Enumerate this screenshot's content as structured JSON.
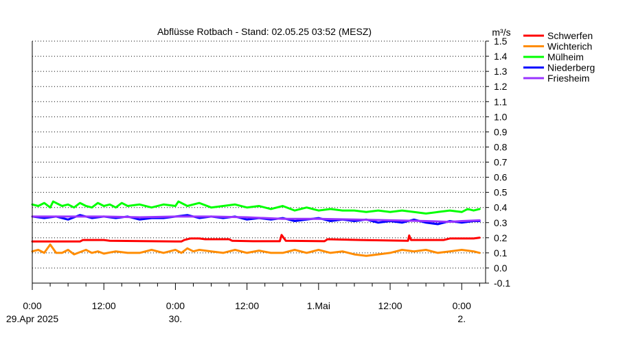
{
  "chart_data": {
    "type": "line",
    "title": "Abflüsse Rotbach - Stand: 02.05.25 03:52 (MESZ)",
    "ylabel": "m³/s",
    "ylim": [
      -0.1,
      1.5
    ],
    "y_ticks": [
      -0.1,
      0.0,
      0.1,
      0.2,
      0.3,
      0.4,
      0.5,
      0.6,
      0.7,
      0.8,
      0.9,
      1.0,
      1.1,
      1.2,
      1.3,
      1.4,
      1.5
    ],
    "y_tick_labels": [
      "-0.1",
      "0.0",
      "0.1",
      "0.2",
      "0.3",
      "0.4",
      "0.5",
      "0.6",
      "0.7",
      "0.8",
      "0.9",
      "1.0",
      "1.1",
      "1.2",
      "1.3",
      "1.4",
      "1.5"
    ],
    "xlim_hours": [
      0,
      76
    ],
    "x_ticks": [
      {
        "hour": 0,
        "line1": "0:00",
        "line2": "29.Apr 2025"
      },
      {
        "hour": 12,
        "line1": "12:00",
        "line2": ""
      },
      {
        "hour": 24,
        "line1": "0:00",
        "line2": "30."
      },
      {
        "hour": 36,
        "line1": "12:00",
        "line2": ""
      },
      {
        "hour": 48,
        "line1": "1.Mai",
        "line2": ""
      },
      {
        "hour": 60,
        "line1": "12:00",
        "line2": ""
      },
      {
        "hour": 72,
        "line1": "0:00",
        "line2": "2."
      }
    ],
    "grid": "horizontal",
    "legend_position": "top-right",
    "series": [
      {
        "name": "Schwerfen",
        "color": "#ff0000",
        "points": [
          [
            0,
            0.175
          ],
          [
            8,
            0.175
          ],
          [
            8.5,
            0.185
          ],
          [
            12,
            0.185
          ],
          [
            13,
            0.18
          ],
          [
            25,
            0.175
          ],
          [
            25.5,
            0.185
          ],
          [
            26.5,
            0.195
          ],
          [
            28,
            0.195
          ],
          [
            29,
            0.19
          ],
          [
            33,
            0.19
          ],
          [
            33.5,
            0.18
          ],
          [
            37,
            0.177
          ],
          [
            41.5,
            0.177
          ],
          [
            41.8,
            0.218
          ],
          [
            42.5,
            0.18
          ],
          [
            49,
            0.177
          ],
          [
            49.5,
            0.19
          ],
          [
            55,
            0.185
          ],
          [
            63,
            0.18
          ],
          [
            63.2,
            0.215
          ],
          [
            63.5,
            0.185
          ],
          [
            69,
            0.185
          ],
          [
            70,
            0.195
          ],
          [
            74,
            0.195
          ],
          [
            75,
            0.2
          ]
        ]
      },
      {
        "name": "Wichterich",
        "color": "#ff8c00",
        "points": [
          [
            0,
            0.11
          ],
          [
            1,
            0.12
          ],
          [
            2,
            0.1
          ],
          [
            3,
            0.155
          ],
          [
            4,
            0.1
          ],
          [
            5,
            0.1
          ],
          [
            6,
            0.12
          ],
          [
            7,
            0.09
          ],
          [
            9,
            0.12
          ],
          [
            10,
            0.1
          ],
          [
            11,
            0.11
          ],
          [
            12,
            0.095
          ],
          [
            14,
            0.11
          ],
          [
            16,
            0.1
          ],
          [
            18,
            0.1
          ],
          [
            20,
            0.12
          ],
          [
            22,
            0.1
          ],
          [
            24,
            0.12
          ],
          [
            25,
            0.1
          ],
          [
            26,
            0.13
          ],
          [
            27,
            0.11
          ],
          [
            28,
            0.12
          ],
          [
            30,
            0.11
          ],
          [
            32,
            0.1
          ],
          [
            34,
            0.12
          ],
          [
            36,
            0.1
          ],
          [
            38,
            0.115
          ],
          [
            40,
            0.1
          ],
          [
            42,
            0.1
          ],
          [
            44,
            0.12
          ],
          [
            46,
            0.1
          ],
          [
            48,
            0.12
          ],
          [
            50,
            0.1
          ],
          [
            52,
            0.11
          ],
          [
            54,
            0.09
          ],
          [
            56,
            0.08
          ],
          [
            58,
            0.09
          ],
          [
            60,
            0.1
          ],
          [
            62,
            0.12
          ],
          [
            64,
            0.11
          ],
          [
            66,
            0.12
          ],
          [
            68,
            0.1
          ],
          [
            70,
            0.11
          ],
          [
            72,
            0.12
          ],
          [
            74,
            0.11
          ],
          [
            75,
            0.1
          ]
        ]
      },
      {
        "name": "Mülheim",
        "color": "#00ff00",
        "points": [
          [
            0,
            0.42
          ],
          [
            1,
            0.41
          ],
          [
            2,
            0.43
          ],
          [
            3,
            0.4
          ],
          [
            3.5,
            0.44
          ],
          [
            5,
            0.41
          ],
          [
            6,
            0.42
          ],
          [
            7,
            0.4
          ],
          [
            8,
            0.43
          ],
          [
            9,
            0.41
          ],
          [
            10,
            0.4
          ],
          [
            11,
            0.43
          ],
          [
            12,
            0.41
          ],
          [
            13,
            0.42
          ],
          [
            14,
            0.4
          ],
          [
            15,
            0.43
          ],
          [
            16,
            0.41
          ],
          [
            18,
            0.42
          ],
          [
            20,
            0.4
          ],
          [
            22,
            0.42
          ],
          [
            24,
            0.41
          ],
          [
            24.5,
            0.44
          ],
          [
            26,
            0.41
          ],
          [
            28,
            0.43
          ],
          [
            30,
            0.4
          ],
          [
            32,
            0.41
          ],
          [
            34,
            0.42
          ],
          [
            36,
            0.4
          ],
          [
            38,
            0.41
          ],
          [
            40,
            0.39
          ],
          [
            42,
            0.41
          ],
          [
            44,
            0.38
          ],
          [
            46,
            0.4
          ],
          [
            48,
            0.38
          ],
          [
            50,
            0.39
          ],
          [
            52,
            0.38
          ],
          [
            54,
            0.38
          ],
          [
            56,
            0.37
          ],
          [
            58,
            0.38
          ],
          [
            60,
            0.37
          ],
          [
            62,
            0.38
          ],
          [
            64,
            0.37
          ],
          [
            66,
            0.36
          ],
          [
            68,
            0.37
          ],
          [
            70,
            0.38
          ],
          [
            72,
            0.37
          ],
          [
            73,
            0.39
          ],
          [
            74,
            0.38
          ],
          [
            75,
            0.39
          ]
        ]
      },
      {
        "name": "Niederberg",
        "color": "#0000ff",
        "points": [
          [
            0,
            0.34
          ],
          [
            2,
            0.33
          ],
          [
            4,
            0.34
          ],
          [
            6,
            0.32
          ],
          [
            8,
            0.35
          ],
          [
            10,
            0.33
          ],
          [
            12,
            0.34
          ],
          [
            14,
            0.33
          ],
          [
            16,
            0.34
          ],
          [
            18,
            0.32
          ],
          [
            20,
            0.33
          ],
          [
            22,
            0.33
          ],
          [
            24,
            0.34
          ],
          [
            26,
            0.35
          ],
          [
            28,
            0.33
          ],
          [
            30,
            0.34
          ],
          [
            32,
            0.33
          ],
          [
            34,
            0.34
          ],
          [
            36,
            0.32
          ],
          [
            38,
            0.33
          ],
          [
            40,
            0.32
          ],
          [
            42,
            0.33
          ],
          [
            44,
            0.31
          ],
          [
            46,
            0.32
          ],
          [
            48,
            0.33
          ],
          [
            50,
            0.31
          ],
          [
            52,
            0.32
          ],
          [
            54,
            0.31
          ],
          [
            56,
            0.32
          ],
          [
            58,
            0.3
          ],
          [
            60,
            0.31
          ],
          [
            62,
            0.3
          ],
          [
            64,
            0.32
          ],
          [
            66,
            0.3
          ],
          [
            68,
            0.29
          ],
          [
            70,
            0.31
          ],
          [
            72,
            0.3
          ],
          [
            74,
            0.31
          ],
          [
            75,
            0.31
          ]
        ]
      },
      {
        "name": "Friesheim",
        "color": "#9933ff",
        "points": [
          [
            0,
            0.34
          ],
          [
            6,
            0.34
          ],
          [
            12,
            0.34
          ],
          [
            18,
            0.335
          ],
          [
            24,
            0.34
          ],
          [
            30,
            0.34
          ],
          [
            36,
            0.335
          ],
          [
            42,
            0.325
          ],
          [
            48,
            0.325
          ],
          [
            54,
            0.32
          ],
          [
            60,
            0.315
          ],
          [
            66,
            0.31
          ],
          [
            70,
            0.305
          ],
          [
            72,
            0.31
          ],
          [
            75,
            0.315
          ]
        ]
      }
    ]
  }
}
